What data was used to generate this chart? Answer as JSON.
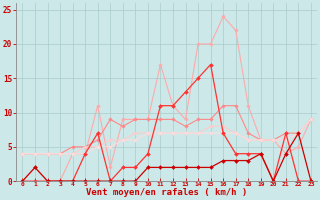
{
  "xlabel": "Vent moyen/en rafales ( km/h )",
  "background_color": "#cce8e8",
  "grid_color": "#aacccc",
  "xlim": [
    -0.5,
    23.5
  ],
  "ylim": [
    0,
    26
  ],
  "yticks": [
    0,
    5,
    10,
    15,
    20,
    25
  ],
  "xticks": [
    0,
    1,
    2,
    3,
    4,
    5,
    6,
    7,
    8,
    9,
    10,
    11,
    12,
    13,
    14,
    15,
    16,
    17,
    18,
    19,
    20,
    21,
    22,
    23
  ],
  "series": [
    {
      "label": "light_pink_high",
      "color": "#ffaaaa",
      "linewidth": 0.8,
      "marker": "D",
      "markersize": 1.8,
      "data": [
        0,
        2,
        0,
        0,
        4,
        4,
        11,
        2,
        9,
        9,
        9,
        17,
        11,
        9,
        20,
        20,
        24,
        22,
        11,
        6,
        6,
        4,
        5,
        9
      ]
    },
    {
      "label": "medium_pink",
      "color": "#ff8888",
      "linewidth": 0.8,
      "marker": "D",
      "markersize": 1.8,
      "data": [
        4,
        4,
        4,
        4,
        5,
        5,
        6,
        9,
        8,
        9,
        9,
        9,
        9,
        8,
        9,
        9,
        11,
        11,
        7,
        6,
        6,
        7,
        7,
        9
      ]
    },
    {
      "label": "light_pink_low",
      "color": "#ffcccc",
      "linewidth": 0.8,
      "marker": "D",
      "markersize": 1.8,
      "data": [
        4,
        4,
        4,
        4,
        4,
        5,
        5,
        6,
        6,
        7,
        7,
        7,
        7,
        7,
        7,
        8,
        8,
        7,
        6,
        6,
        6,
        6,
        7,
        9
      ]
    },
    {
      "label": "lightest_pink",
      "color": "#ffdddd",
      "linewidth": 0.8,
      "marker": "D",
      "markersize": 1.8,
      "data": [
        4,
        4,
        4,
        4,
        4,
        4,
        5,
        5,
        6,
        6,
        7,
        7,
        7,
        7,
        7,
        7,
        7,
        7,
        6,
        6,
        6,
        6,
        7,
        9
      ]
    },
    {
      "label": "medium_red",
      "color": "#ff3333",
      "linewidth": 0.9,
      "marker": "D",
      "markersize": 2.0,
      "data": [
        0,
        0,
        0,
        0,
        0,
        4,
        7,
        0,
        2,
        2,
        4,
        11,
        11,
        13,
        15,
        17,
        7,
        4,
        4,
        4,
        0,
        7,
        0,
        0
      ]
    },
    {
      "label": "dark_red",
      "color": "#cc0000",
      "linewidth": 0.9,
      "marker": "D",
      "markersize": 2.0,
      "data": [
        0,
        2,
        0,
        0,
        0,
        0,
        0,
        0,
        0,
        0,
        2,
        2,
        2,
        2,
        2,
        2,
        3,
        3,
        3,
        4,
        0,
        4,
        7,
        0
      ]
    }
  ]
}
